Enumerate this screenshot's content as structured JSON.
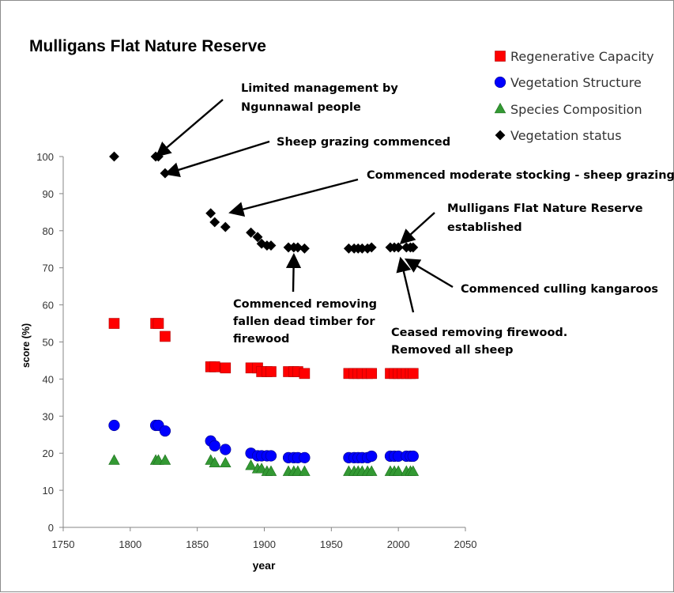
{
  "chart_data": {
    "type": "scatter",
    "title": "Mulligans Flat Nature Reserve",
    "xlabel": "year",
    "ylabel": "score  (%)",
    "xlim": [
      1750,
      2050
    ],
    "ylim": [
      0,
      100
    ],
    "x_ticks": [
      "1750",
      "1800",
      "1850",
      "1900",
      "1950",
      "2000",
      "2050"
    ],
    "y_ticks": [
      "0",
      "10",
      "20",
      "30",
      "40",
      "50",
      "60",
      "70",
      "80",
      "90",
      "100"
    ],
    "grid": false,
    "legend_position": "top-right",
    "series": [
      {
        "name": "Regenerative Capacity",
        "marker": "square",
        "color": "#ff0000",
        "points": [
          [
            1788,
            55
          ],
          [
            1819,
            55
          ],
          [
            1821,
            55
          ],
          [
            1826,
            51.5
          ],
          [
            1860,
            43.3
          ],
          [
            1863,
            43.3
          ],
          [
            1871,
            43
          ],
          [
            1890,
            43
          ],
          [
            1895,
            43
          ],
          [
            1898,
            42
          ],
          [
            1902,
            42
          ],
          [
            1905,
            42
          ],
          [
            1918,
            42
          ],
          [
            1922,
            42
          ],
          [
            1925,
            42
          ],
          [
            1930,
            41.5
          ],
          [
            1963,
            41.5
          ],
          [
            1967,
            41.5
          ],
          [
            1970,
            41.5
          ],
          [
            1973,
            41.5
          ],
          [
            1977,
            41.5
          ],
          [
            1980,
            41.5
          ],
          [
            1994,
            41.5
          ],
          [
            1997,
            41.5
          ],
          [
            2000,
            41.5
          ],
          [
            2003,
            41.5
          ],
          [
            2006,
            41.5
          ],
          [
            2009,
            41.5
          ],
          [
            2011,
            41.5
          ]
        ]
      },
      {
        "name": "Vegetation Structure",
        "marker": "circle",
        "color": "#0000ff",
        "points": [
          [
            1788,
            27.5
          ],
          [
            1819,
            27.5
          ],
          [
            1821,
            27.5
          ],
          [
            1826,
            26
          ],
          [
            1860,
            23.3
          ],
          [
            1863,
            22
          ],
          [
            1871,
            21
          ],
          [
            1890,
            20
          ],
          [
            1895,
            19.3
          ],
          [
            1898,
            19.3
          ],
          [
            1902,
            19.3
          ],
          [
            1905,
            19.3
          ],
          [
            1918,
            18.8
          ],
          [
            1922,
            18.8
          ],
          [
            1925,
            18.8
          ],
          [
            1930,
            18.8
          ],
          [
            1963,
            18.8
          ],
          [
            1967,
            18.8
          ],
          [
            1970,
            18.8
          ],
          [
            1973,
            18.8
          ],
          [
            1977,
            18.8
          ],
          [
            1980,
            19.2
          ],
          [
            1994,
            19.2
          ],
          [
            1997,
            19.2
          ],
          [
            2000,
            19.2
          ],
          [
            2006,
            19.2
          ],
          [
            2009,
            19.2
          ],
          [
            2011,
            19.2
          ]
        ]
      },
      {
        "name": "Species Composition",
        "marker": "triangle",
        "color": "#339933",
        "points": [
          [
            1788,
            18
          ],
          [
            1819,
            18
          ],
          [
            1821,
            18
          ],
          [
            1826,
            18
          ],
          [
            1860,
            18
          ],
          [
            1863,
            17.3
          ],
          [
            1871,
            17.3
          ],
          [
            1890,
            16.6
          ],
          [
            1895,
            15.7
          ],
          [
            1898,
            15.7
          ],
          [
            1902,
            15
          ],
          [
            1905,
            15
          ],
          [
            1918,
            15
          ],
          [
            1922,
            15
          ],
          [
            1925,
            15
          ],
          [
            1930,
            15
          ],
          [
            1963,
            15
          ],
          [
            1967,
            15
          ],
          [
            1970,
            15
          ],
          [
            1973,
            15
          ],
          [
            1977,
            15
          ],
          [
            1980,
            15
          ],
          [
            1994,
            15
          ],
          [
            1997,
            15
          ],
          [
            2000,
            15
          ],
          [
            2006,
            15
          ],
          [
            2009,
            15
          ],
          [
            2011,
            15
          ]
        ]
      },
      {
        "name": "Vegetation status",
        "marker": "diamond",
        "color": "#000000",
        "points": [
          [
            1788,
            100
          ],
          [
            1819,
            100
          ],
          [
            1821,
            100
          ],
          [
            1826,
            95.5
          ],
          [
            1860,
            84.7
          ],
          [
            1863,
            82.3
          ],
          [
            1871,
            81
          ],
          [
            1890,
            79.5
          ],
          [
            1895,
            78.3
          ],
          [
            1898,
            76.5
          ],
          [
            1902,
            76
          ],
          [
            1905,
            76
          ],
          [
            1918,
            75.5
          ],
          [
            1922,
            75.5
          ],
          [
            1925,
            75.5
          ],
          [
            1930,
            75.2
          ],
          [
            1963,
            75.2
          ],
          [
            1967,
            75.2
          ],
          [
            1970,
            75.2
          ],
          [
            1973,
            75.2
          ],
          [
            1977,
            75.2
          ],
          [
            1980,
            75.5
          ],
          [
            1994,
            75.5
          ],
          [
            1997,
            75.5
          ],
          [
            2000,
            75.5
          ],
          [
            2006,
            75.5
          ],
          [
            2009,
            75.5
          ],
          [
            2011,
            75.5
          ]
        ]
      }
    ],
    "annotations": [
      {
        "name": "annotation-ngunnawal",
        "lines": [
          "Limited management by",
          "Ngunnawal people"
        ],
        "arrow_to": [
          1821,
          100.5
        ]
      },
      {
        "name": "annotation-sheep-grazing",
        "lines": [
          "Sheep grazing commenced"
        ],
        "arrow_to": [
          1828,
          95.5
        ]
      },
      {
        "name": "annotation-moderate-stocking",
        "lines": [
          "Commenced moderate stocking - sheep grazing"
        ],
        "arrow_to": [
          1876,
          85
        ]
      },
      {
        "name": "annotation-reserve-established",
        "lines": [
          "Mulligans Flat Nature Reserve",
          "established"
        ],
        "arrow_to": [
          2003,
          77
        ]
      },
      {
        "name": "annotation-dead-timber",
        "lines": [
          "Commenced removing",
          "fallen dead timber for",
          "firewood"
        ],
        "arrow_to": [
          1922,
          73
        ]
      },
      {
        "name": "annotation-culling",
        "lines": [
          "Commenced culling kangaroos"
        ],
        "arrow_to": [
          2007,
          72
        ]
      },
      {
        "name": "annotation-ceased-firewood",
        "lines": [
          "Ceased removing firewood.",
          "Removed all sheep"
        ],
        "arrow_to": [
          2002,
          72
        ]
      }
    ]
  }
}
